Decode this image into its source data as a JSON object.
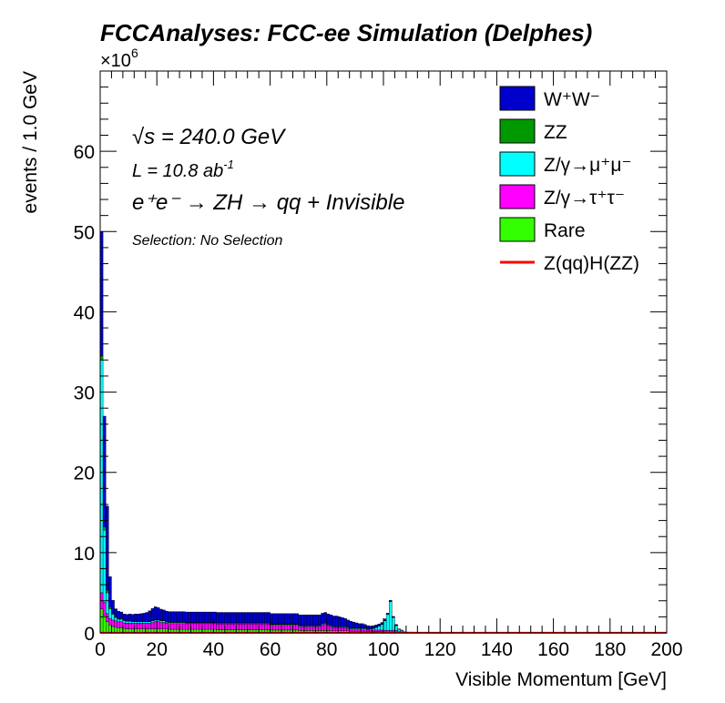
{
  "chart_data": {
    "type": "bar",
    "stacked": true,
    "title": "FCCAnalyses: FCC-ee Simulation (Delphes)",
    "xlabel": "Visible Momentum [GeV]",
    "ylabel": "events / 1.0 GeV",
    "y_multiplier": "×10",
    "y_multiplier_exp": "6",
    "xlim": [
      0,
      200
    ],
    "ylim": [
      0,
      70
    ],
    "bin_width": 1,
    "xticks": [
      "0",
      "20",
      "40",
      "60",
      "80",
      "100",
      "120",
      "140",
      "160",
      "180",
      "200"
    ],
    "yticks": [
      "0",
      "10",
      "20",
      "30",
      "40",
      "50",
      "60"
    ],
    "annotations": {
      "sqrt_s": "√s = 240.0 GeV",
      "lumi": "L = 10.8 ab",
      "lumi_exp": "-1",
      "process": "e⁺e⁻ → ZH → qq + Invisible",
      "selection": "Selection: No Selection"
    },
    "legend_position": "top-right",
    "x": [
      0,
      1,
      2,
      3,
      4,
      5,
      6,
      7,
      8,
      9,
      10,
      11,
      12,
      13,
      14,
      15,
      16,
      17,
      18,
      19,
      20,
      21,
      22,
      23,
      24,
      25,
      26,
      27,
      28,
      29,
      30,
      31,
      32,
      33,
      34,
      35,
      36,
      37,
      38,
      39,
      40,
      41,
      42,
      43,
      44,
      45,
      46,
      47,
      48,
      49,
      50,
      51,
      52,
      53,
      54,
      55,
      56,
      57,
      58,
      59,
      60,
      61,
      62,
      63,
      64,
      65,
      66,
      67,
      68,
      69,
      70,
      71,
      72,
      73,
      74,
      75,
      76,
      77,
      78,
      79,
      80,
      81,
      82,
      83,
      84,
      85,
      86,
      87,
      88,
      89,
      90,
      91,
      92,
      93,
      94,
      95,
      96,
      97,
      98,
      99,
      100,
      101,
      102,
      103,
      104,
      105,
      106,
      107,
      108,
      109,
      110
    ],
    "series": [
      {
        "name": "Rare",
        "color": "#33ff00",
        "values": [
          3.0,
          2.2,
          1.4,
          1.0,
          0.8,
          0.7,
          0.6,
          0.6,
          0.55,
          0.5,
          0.5,
          0.5,
          0.5,
          0.5,
          0.5,
          0.5,
          0.5,
          0.5,
          0.5,
          0.5,
          0.5,
          0.5,
          0.5,
          0.5,
          0.45,
          0.45,
          0.45,
          0.45,
          0.45,
          0.45,
          0.45,
          0.45,
          0.45,
          0.45,
          0.45,
          0.45,
          0.45,
          0.45,
          0.45,
          0.45,
          0.45,
          0.4,
          0.4,
          0.4,
          0.4,
          0.4,
          0.4,
          0.4,
          0.4,
          0.4,
          0.4,
          0.4,
          0.4,
          0.4,
          0.4,
          0.4,
          0.4,
          0.4,
          0.4,
          0.4,
          0.35,
          0.35,
          0.35,
          0.35,
          0.35,
          0.35,
          0.35,
          0.35,
          0.35,
          0.35,
          0.3,
          0.3,
          0.3,
          0.3,
          0.3,
          0.3,
          0.3,
          0.3,
          0.3,
          0.3,
          0.3,
          0.3,
          0.25,
          0.25,
          0.25,
          0.25,
          0.25,
          0.25,
          0.2,
          0.2,
          0.2,
          0.2,
          0.2,
          0.2,
          0.15,
          0.15,
          0.15,
          0.15,
          0.15,
          0.15,
          0.1,
          0.1,
          0.1,
          0.1,
          0.1,
          0.05,
          0.05,
          0.05,
          0.05,
          0.05,
          0.05
        ]
      },
      {
        "name": "Z/γ→τ⁺τ⁻",
        "color": "#ff00ff",
        "values": [
          2.0,
          1.6,
          1.0,
          0.8,
          0.8,
          0.8,
          0.8,
          0.8,
          0.7,
          0.7,
          0.7,
          0.7,
          0.7,
          0.7,
          0.7,
          0.7,
          0.7,
          0.7,
          0.8,
          0.9,
          0.9,
          0.8,
          0.8,
          0.7,
          0.7,
          0.7,
          0.7,
          0.7,
          0.7,
          0.7,
          0.7,
          0.7,
          0.7,
          0.7,
          0.7,
          0.7,
          0.7,
          0.7,
          0.7,
          0.7,
          0.7,
          0.7,
          0.7,
          0.7,
          0.7,
          0.7,
          0.7,
          0.7,
          0.7,
          0.7,
          0.7,
          0.7,
          0.7,
          0.7,
          0.7,
          0.7,
          0.7,
          0.7,
          0.7,
          0.7,
          0.6,
          0.6,
          0.6,
          0.6,
          0.6,
          0.6,
          0.6,
          0.6,
          0.6,
          0.6,
          0.5,
          0.5,
          0.5,
          0.5,
          0.5,
          0.5,
          0.5,
          0.5,
          0.7,
          0.8,
          0.6,
          0.5,
          0.4,
          0.4,
          0.4,
          0.4,
          0.4,
          0.3,
          0.3,
          0.3,
          0.3,
          0.3,
          0.3,
          0.3,
          0.2,
          0.2,
          0.2,
          0.2,
          0.2,
          0.2,
          0.2,
          0.2,
          0.2,
          0.2,
          0.2,
          0.1,
          0.1,
          0.05,
          0.05,
          0.05,
          0.05
        ]
      },
      {
        "name": "Z/γ→μ⁺μ⁻",
        "color": "#00ffff",
        "values": [
          29.0,
          9.0,
          2.6,
          1.2,
          0.7,
          0.4,
          0.3,
          0.3,
          0.25,
          0.25,
          0.25,
          0.2,
          0.2,
          0.2,
          0.2,
          0.2,
          0.2,
          0.2,
          0.2,
          0.2,
          0.2,
          0.2,
          0.2,
          0.15,
          0.15,
          0.15,
          0.15,
          0.15,
          0.15,
          0.15,
          0.1,
          0.1,
          0.1,
          0.1,
          0.1,
          0.1,
          0.1,
          0.1,
          0.1,
          0.1,
          0.1,
          0.1,
          0.1,
          0.1,
          0.1,
          0.1,
          0.1,
          0.1,
          0.1,
          0.1,
          0.1,
          0.1,
          0.1,
          0.1,
          0.1,
          0.1,
          0.1,
          0.1,
          0.1,
          0.1,
          0.1,
          0.1,
          0.1,
          0.1,
          0.1,
          0.1,
          0.1,
          0.1,
          0.1,
          0.1,
          0.1,
          0.1,
          0.1,
          0.1,
          0.1,
          0.1,
          0.1,
          0.1,
          0.1,
          0.1,
          0.1,
          0.1,
          0.1,
          0.1,
          0.1,
          0.1,
          0.1,
          0.1,
          0.1,
          0.1,
          0.1,
          0.1,
          0.1,
          0.1,
          0.1,
          0.15,
          0.2,
          0.3,
          0.5,
          0.7,
          1.2,
          2.0,
          3.6,
          1.6,
          0.6,
          0.3,
          0.15,
          0.05,
          0.0,
          0.0,
          0.0
        ]
      },
      {
        "name": "ZZ",
        "color": "#009900",
        "values": [
          0.5,
          0.4,
          0.3,
          0.2,
          0.15,
          0.1,
          0.1,
          0.1,
          0.05,
          0.05,
          0.05,
          0.05,
          0.05,
          0.05,
          0.05,
          0.05,
          0.05,
          0.05,
          0.05,
          0.05,
          0.05,
          0.05,
          0.05,
          0.05,
          0.05,
          0.05,
          0.05,
          0.05,
          0.05,
          0.05,
          0.05,
          0.05,
          0.05,
          0.05,
          0.05,
          0.05,
          0.05,
          0.05,
          0.05,
          0.05,
          0.05,
          0.05,
          0.05,
          0.05,
          0.05,
          0.05,
          0.05,
          0.05,
          0.05,
          0.05,
          0.05,
          0.05,
          0.05,
          0.05,
          0.05,
          0.05,
          0.05,
          0.05,
          0.05,
          0.05,
          0.05,
          0.05,
          0.05,
          0.05,
          0.05,
          0.05,
          0.05,
          0.05,
          0.05,
          0.05,
          0.05,
          0.05,
          0.05,
          0.05,
          0.05,
          0.05,
          0.05,
          0.05,
          0.05,
          0.05,
          0.05,
          0.05,
          0.05,
          0.05,
          0.05,
          0.05,
          0.05,
          0.05,
          0.05,
          0.05,
          0.05,
          0.05,
          0.05,
          0.05,
          0.05,
          0.05,
          0.05,
          0.05,
          0.05,
          0.05,
          0.05,
          0.05,
          0.05,
          0.05,
          0.05,
          0.0,
          0.0,
          0.0,
          0.0,
          0.0,
          0.0
        ]
      },
      {
        "name": "W⁺W⁻",
        "color": "#0000cc",
        "values": [
          15.5,
          13.8,
          10.5,
          3.8,
          1.6,
          1.0,
          0.9,
          0.8,
          0.8,
          0.8,
          0.85,
          0.85,
          0.9,
          0.9,
          0.95,
          1.0,
          1.1,
          1.3,
          1.5,
          1.6,
          1.5,
          1.4,
          1.3,
          1.3,
          1.3,
          1.3,
          1.3,
          1.3,
          1.3,
          1.3,
          1.3,
          1.3,
          1.3,
          1.3,
          1.3,
          1.3,
          1.3,
          1.3,
          1.3,
          1.3,
          1.3,
          1.3,
          1.3,
          1.3,
          1.3,
          1.3,
          1.3,
          1.3,
          1.3,
          1.3,
          1.3,
          1.3,
          1.3,
          1.3,
          1.3,
          1.3,
          1.3,
          1.3,
          1.3,
          1.3,
          1.3,
          1.3,
          1.3,
          1.3,
          1.3,
          1.3,
          1.3,
          1.3,
          1.3,
          1.3,
          1.3,
          1.3,
          1.3,
          1.3,
          1.3,
          1.3,
          1.3,
          1.3,
          1.3,
          1.3,
          1.3,
          1.3,
          1.3,
          1.3,
          1.2,
          1.1,
          1.0,
          0.9,
          0.8,
          0.7,
          0.6,
          0.5,
          0.5,
          0.4,
          0.4,
          0.3,
          0.3,
          0.3,
          0.2,
          0.2,
          0.2,
          0.1,
          0.1,
          0.1,
          0.1,
          0.05,
          0.05,
          0.0,
          0.0,
          0.0,
          0.0
        ]
      }
    ],
    "overlay": {
      "name": "Z(qq)H(ZZ)",
      "color": "#ff0000",
      "values": [
        0.02,
        0.02,
        0.02,
        0.02,
        0.02,
        0.02,
        0.02,
        0.02,
        0.02,
        0.02,
        0.02,
        0.02,
        0.02,
        0.02,
        0.02,
        0.02,
        0.02,
        0.02,
        0.02,
        0.02,
        0.02,
        0.02,
        0.02,
        0.02,
        0.02,
        0.02,
        0.02,
        0.02,
        0.02,
        0.02,
        0.02,
        0.02,
        0.02,
        0.02,
        0.02,
        0.02,
        0.02,
        0.02,
        0.02,
        0.02,
        0.02,
        0.02,
        0.02,
        0.02,
        0.02,
        0.02,
        0.02,
        0.02,
        0.02,
        0.02,
        0.02,
        0.02,
        0.02,
        0.02,
        0.02,
        0.02,
        0.02,
        0.02,
        0.02,
        0.02,
        0.02,
        0.02,
        0.02,
        0.02,
        0.02,
        0.02,
        0.02,
        0.02,
        0.02,
        0.02,
        0.02,
        0.02,
        0.02,
        0.02,
        0.02,
        0.02,
        0.02,
        0.02,
        0.02,
        0.02,
        0.02,
        0.02,
        0.02,
        0.02,
        0.02,
        0.02,
        0.02,
        0.02,
        0.02,
        0.02,
        0.02,
        0.02,
        0.02,
        0.02,
        0.02,
        0.02,
        0.02,
        0.02,
        0.02,
        0.02,
        0.02,
        0.02,
        0.02,
        0.02,
        0.02,
        0.02,
        0.02,
        0.02,
        0.02,
        0.02,
        0.02
      ]
    },
    "legend": [
      {
        "label": "W⁺W⁻",
        "color": "#0000cc",
        "kind": "box"
      },
      {
        "label": "ZZ",
        "color": "#009900",
        "kind": "box"
      },
      {
        "label": "Z/γ→μ⁺μ⁻",
        "color": "#00ffff",
        "kind": "box"
      },
      {
        "label": "Z/γ→τ⁺τ⁻",
        "color": "#ff00ff",
        "kind": "box"
      },
      {
        "label": "Rare",
        "color": "#33ff00",
        "kind": "box"
      },
      {
        "label": "Z(qq)H(ZZ)",
        "color": "#ff0000",
        "kind": "line"
      }
    ]
  }
}
